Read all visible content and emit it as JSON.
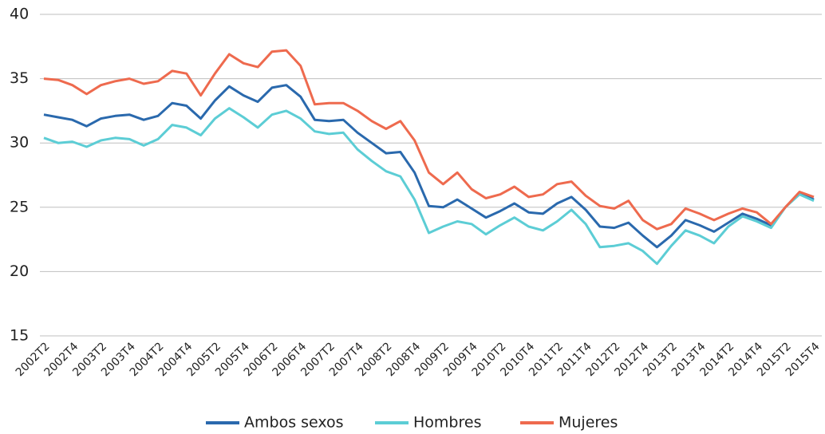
{
  "chart_data": {
    "type": "line",
    "categories": [
      "2002T2",
      null,
      "2002T4",
      null,
      "2003T2",
      null,
      "2003T4",
      null,
      "2004T2",
      null,
      "2004T4",
      null,
      "2005T2",
      null,
      "2005T4",
      null,
      "2006T2",
      null,
      "2006T4",
      null,
      "2007T2",
      null,
      "2007T4",
      null,
      "2008T2",
      null,
      "2008T4",
      null,
      "2009T2",
      null,
      "2009T4",
      null,
      "2010T2",
      null,
      "2010T4",
      null,
      "2011T2",
      null,
      "2011T4",
      null,
      "2012T2",
      null,
      "2012T4",
      null,
      "2013T2",
      null,
      "2013T4",
      null,
      "2014T2",
      null,
      "2014T4",
      null,
      "2015T2",
      null,
      "2015T4"
    ],
    "series": [
      {
        "name": "Ambos sexos",
        "color": "#2a69ad",
        "values": [
          32.2,
          32.0,
          31.8,
          31.3,
          31.9,
          32.1,
          32.2,
          31.8,
          32.1,
          33.1,
          32.9,
          31.9,
          33.3,
          34.4,
          33.7,
          33.2,
          34.3,
          34.5,
          33.6,
          31.8,
          31.7,
          31.8,
          30.8,
          30.0,
          29.2,
          29.3,
          27.7,
          25.1,
          25.0,
          25.6,
          24.9,
          24.2,
          24.7,
          25.3,
          24.6,
          24.5,
          25.3,
          25.8,
          24.8,
          23.5,
          23.4,
          23.8,
          22.8,
          21.9,
          22.8,
          24.0,
          23.6,
          23.1,
          23.8,
          24.5,
          24.1,
          23.6,
          25.0,
          26.1,
          25.6
        ]
      },
      {
        "name": "Hombres",
        "color": "#5ccdd5",
        "values": [
          30.4,
          30.0,
          30.1,
          29.7,
          30.2,
          30.4,
          30.3,
          29.8,
          30.3,
          31.4,
          31.2,
          30.6,
          31.9,
          32.7,
          32.0,
          31.2,
          32.2,
          32.5,
          31.9,
          30.9,
          30.7,
          30.8,
          29.5,
          28.6,
          27.8,
          27.4,
          25.6,
          23.0,
          23.5,
          23.9,
          23.7,
          22.9,
          23.6,
          24.2,
          23.5,
          23.2,
          23.9,
          24.8,
          23.7,
          21.9,
          22.0,
          22.2,
          21.6,
          20.6,
          22.0,
          23.2,
          22.8,
          22.2,
          23.5,
          24.3,
          23.9,
          23.4,
          25.0,
          26.0,
          25.5
        ]
      },
      {
        "name": "Mujeres",
        "color": "#ee6a4e",
        "values": [
          35.0,
          34.9,
          34.5,
          33.8,
          34.5,
          34.8,
          35.0,
          34.6,
          34.8,
          35.6,
          35.4,
          33.7,
          35.4,
          36.9,
          36.2,
          35.9,
          37.1,
          37.2,
          36.0,
          33.0,
          33.1,
          33.1,
          32.5,
          31.7,
          31.1,
          31.7,
          30.2,
          27.7,
          26.8,
          27.7,
          26.4,
          25.7,
          26.0,
          26.6,
          25.8,
          26.0,
          26.8,
          27.0,
          25.9,
          25.1,
          24.9,
          25.5,
          24.0,
          23.3,
          23.7,
          24.9,
          24.5,
          24.0,
          24.5,
          24.9,
          24.6,
          23.7,
          25.0,
          26.2,
          25.8
        ]
      }
    ],
    "ylim": [
      15,
      40
    ],
    "yticks": [
      15,
      20,
      25,
      30,
      35,
      40
    ],
    "grid": true,
    "legend": "bottom"
  }
}
